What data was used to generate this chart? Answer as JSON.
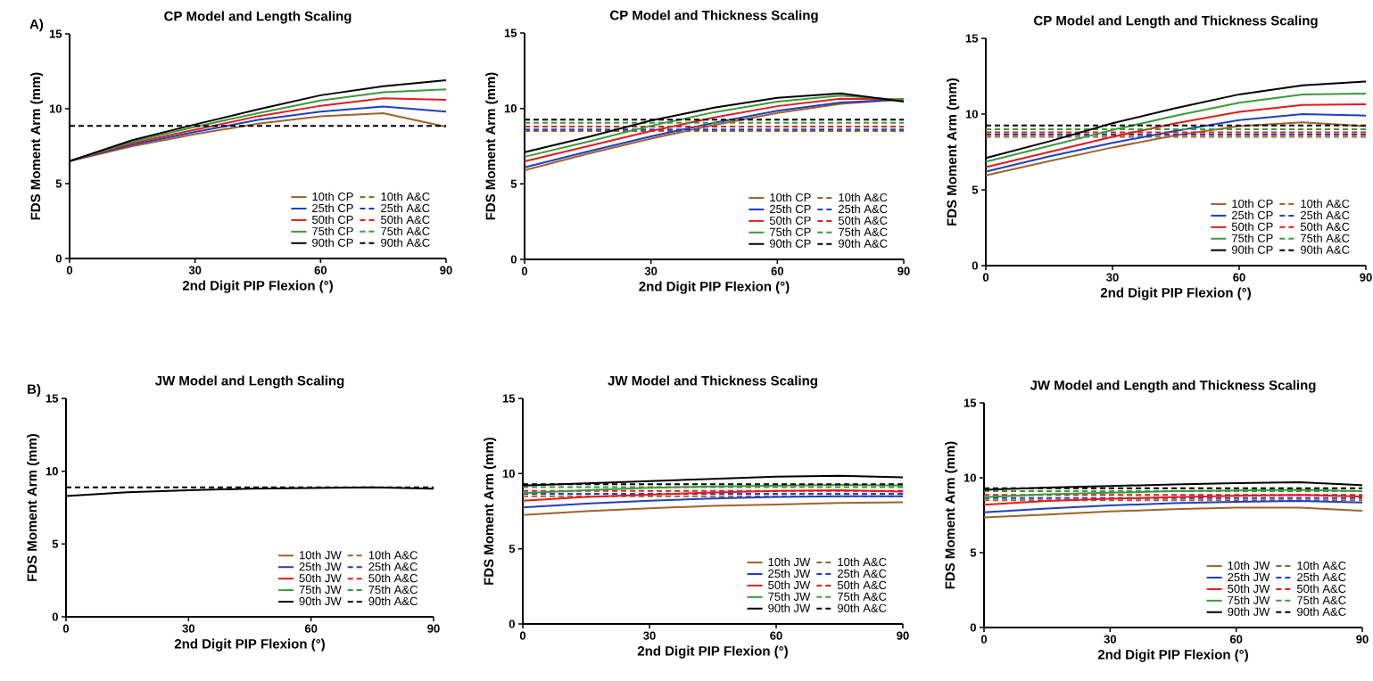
{
  "chart_data": [
    {
      "type": "line",
      "title": "CP Model and Length Scaling",
      "xlabel": "2nd Digit PIP Flexion (°)",
      "ylabel": "FDS Moment Arm (mm)",
      "annotations": [
        "A)"
      ],
      "x": [
        0,
        15,
        30,
        45,
        60,
        75,
        90
      ],
      "xlim": [
        0,
        90
      ],
      "ylim": [
        0,
        15
      ],
      "xticks": [
        0,
        30,
        60,
        90
      ],
      "yticks": [
        0,
        5,
        10,
        15
      ],
      "legend": "bottom right",
      "line_style": "solid",
      "series": [
        {
          "name": "10th CP",
          "color": "#a0622d",
          "values": [
            6.5,
            7.5,
            8.3,
            9.0,
            9.5,
            9.7,
            8.8
          ]
        },
        {
          "name": "10th A&C",
          "color": "#a0622d",
          "line_style": "dashed",
          "values": [
            null,
            null,
            null,
            null,
            null,
            null,
            null
          ]
        },
        {
          "name": "25th CP",
          "color": "#1f3fbf",
          "values": [
            6.5,
            7.6,
            8.45,
            9.25,
            9.8,
            10.15,
            9.8
          ]
        },
        {
          "name": "25th A&C",
          "color": "#1f3fbf",
          "line_style": "dashed",
          "values": [
            null,
            null,
            null,
            null,
            null,
            null,
            null
          ]
        },
        {
          "name": "50th CP",
          "color": "#e8191c",
          "values": [
            6.5,
            7.7,
            8.6,
            9.5,
            10.2,
            10.7,
            10.6
          ]
        },
        {
          "name": "50th A&C",
          "color": "#e8191c",
          "line_style": "dashed",
          "values": [
            null,
            null,
            null,
            null,
            null,
            null,
            null
          ]
        },
        {
          "name": "75th CP",
          "color": "#3a9a3a",
          "values": [
            6.5,
            7.8,
            8.8,
            9.7,
            10.55,
            11.1,
            11.3
          ]
        },
        {
          "name": "75th A&C",
          "color": "#3a9a3a",
          "line_style": "dashed",
          "values": [
            null,
            null,
            null,
            null,
            null,
            null,
            null
          ]
        },
        {
          "name": "90th CP",
          "color": "#000000",
          "values": [
            6.5,
            7.9,
            8.95,
            9.95,
            10.9,
            11.5,
            11.9
          ]
        },
        {
          "name": "90th A&C",
          "color": "#000000",
          "line_style": "dashed",
          "values": [
            8.85,
            8.85,
            8.85,
            8.85,
            8.85,
            8.85,
            8.85
          ]
        }
      ]
    },
    {
      "type": "line",
      "title": "CP Model and Thickness Scaling",
      "xlabel": "2nd Digit PIP Flexion (°)",
      "ylabel": "FDS Moment Arm (mm)",
      "x": [
        0,
        15,
        30,
        45,
        60,
        75,
        90
      ],
      "xlim": [
        0,
        90
      ],
      "ylim": [
        0,
        15
      ],
      "xticks": [
        0,
        30,
        60,
        90
      ],
      "yticks": [
        0,
        5,
        10,
        15
      ],
      "legend": "bottom right",
      "line_style": "solid",
      "series": [
        {
          "name": "10th CP",
          "color": "#a0622d",
          "values": [
            5.9,
            7.0,
            8.0,
            8.9,
            9.7,
            10.3,
            10.6
          ]
        },
        {
          "name": "10th A&C",
          "color": "#a0622d",
          "line_style": "dashed",
          "values": [
            8.5,
            8.5,
            8.5,
            8.5,
            8.5,
            8.5,
            8.5
          ]
        },
        {
          "name": "25th CP",
          "color": "#1f3fbf",
          "values": [
            6.1,
            7.15,
            8.15,
            9.05,
            9.85,
            10.4,
            10.6
          ]
        },
        {
          "name": "25th A&C",
          "color": "#1f3fbf",
          "line_style": "dashed",
          "values": [
            8.6,
            8.6,
            8.6,
            8.6,
            8.6,
            8.6,
            8.6
          ]
        },
        {
          "name": "50th CP",
          "color": "#e8191c",
          "values": [
            6.5,
            7.5,
            8.5,
            9.4,
            10.15,
            10.65,
            10.6
          ]
        },
        {
          "name": "50th A&C",
          "color": "#e8191c",
          "line_style": "dashed",
          "values": [
            8.8,
            8.8,
            8.8,
            8.8,
            8.8,
            8.8,
            8.8
          ]
        },
        {
          "name": "75th CP",
          "color": "#3a9a3a",
          "values": [
            6.8,
            7.8,
            8.85,
            9.75,
            10.45,
            10.85,
            10.55
          ]
        },
        {
          "name": "75th A&C",
          "color": "#3a9a3a",
          "line_style": "dashed",
          "values": [
            9.05,
            9.05,
            9.05,
            9.05,
            9.05,
            9.05,
            9.05
          ]
        },
        {
          "name": "90th CP",
          "color": "#000000",
          "values": [
            7.1,
            8.1,
            9.2,
            10.05,
            10.7,
            11.0,
            10.45
          ]
        },
        {
          "name": "90th A&C",
          "color": "#000000",
          "line_style": "dashed",
          "values": [
            9.25,
            9.25,
            9.25,
            9.25,
            9.25,
            9.25,
            9.25
          ]
        }
      ]
    },
    {
      "type": "line",
      "title": "CP Model and Length and Thickness Scaling",
      "xlabel": "2nd Digit PIP Flexion (°)",
      "ylabel": "FDS Moment Arm (mm)",
      "x": [
        0,
        15,
        30,
        45,
        60,
        75,
        90
      ],
      "xlim": [
        0,
        90
      ],
      "ylim": [
        0,
        15
      ],
      "xticks": [
        0,
        30,
        60,
        90
      ],
      "yticks": [
        0,
        5,
        10,
        15
      ],
      "legend": "bottom right",
      "line_style": "solid",
      "series": [
        {
          "name": "10th CP",
          "color": "#a0622d",
          "values": [
            5.95,
            6.9,
            7.8,
            8.6,
            9.2,
            9.45,
            9.2
          ]
        },
        {
          "name": "10th A&C",
          "color": "#a0622d",
          "line_style": "dashed",
          "values": [
            8.5,
            8.5,
            8.5,
            8.5,
            8.5,
            8.5,
            8.5
          ]
        },
        {
          "name": "25th CP",
          "color": "#1f3fbf",
          "values": [
            6.2,
            7.2,
            8.1,
            8.9,
            9.6,
            10.0,
            9.9
          ]
        },
        {
          "name": "25th A&C",
          "color": "#1f3fbf",
          "line_style": "dashed",
          "values": [
            8.65,
            8.65,
            8.65,
            8.65,
            8.65,
            8.65,
            8.65
          ]
        },
        {
          "name": "50th CP",
          "color": "#e8191c",
          "values": [
            6.5,
            7.5,
            8.5,
            9.4,
            10.15,
            10.6,
            10.65
          ]
        },
        {
          "name": "50th A&C",
          "color": "#e8191c",
          "line_style": "dashed",
          "values": [
            8.8,
            8.8,
            8.8,
            8.8,
            8.8,
            8.8,
            8.8
          ]
        },
        {
          "name": "75th CP",
          "color": "#3a9a3a",
          "values": [
            6.85,
            7.9,
            8.95,
            9.9,
            10.75,
            11.3,
            11.35
          ]
        },
        {
          "name": "75th A&C",
          "color": "#3a9a3a",
          "line_style": "dashed",
          "values": [
            9.0,
            9.0,
            9.0,
            9.0,
            9.0,
            9.0,
            9.0
          ]
        },
        {
          "name": "90th CP",
          "color": "#000000",
          "values": [
            7.1,
            8.2,
            9.4,
            10.4,
            11.3,
            11.9,
            12.15
          ]
        },
        {
          "name": "90th A&C",
          "color": "#000000",
          "line_style": "dashed",
          "values": [
            9.25,
            9.25,
            9.25,
            9.25,
            9.25,
            9.25,
            9.25
          ]
        }
      ]
    },
    {
      "type": "line",
      "title": "JW Model and Length Scaling",
      "xlabel": "2nd Digit PIP Flexion (°)",
      "ylabel": "FDS Moment Arm (mm)",
      "annotations": [
        "B)"
      ],
      "x": [
        0,
        15,
        30,
        45,
        60,
        75,
        90
      ],
      "xlim": [
        0,
        90
      ],
      "ylim": [
        0,
        15
      ],
      "xticks": [
        0,
        30,
        60,
        90
      ],
      "yticks": [
        0,
        5,
        10,
        15
      ],
      "legend": "bottom right",
      "line_style": "solid",
      "series": [
        {
          "name": "10th JW",
          "color": "#a0622d",
          "values": [
            null,
            null,
            null,
            null,
            null,
            null,
            null
          ]
        },
        {
          "name": "10th A&C",
          "color": "#a0622d",
          "line_style": "dashed",
          "values": [
            null,
            null,
            null,
            null,
            null,
            null,
            null
          ]
        },
        {
          "name": "25th JW",
          "color": "#1f3fbf",
          "values": [
            null,
            null,
            null,
            null,
            null,
            null,
            null
          ]
        },
        {
          "name": "25th A&C",
          "color": "#1f3fbf",
          "line_style": "dashed",
          "values": [
            null,
            null,
            null,
            null,
            null,
            null,
            null
          ]
        },
        {
          "name": "50th JW",
          "color": "#e8191c",
          "values": [
            null,
            null,
            null,
            null,
            null,
            null,
            null
          ]
        },
        {
          "name": "50th A&C",
          "color": "#e8191c",
          "line_style": "dashed",
          "values": [
            null,
            null,
            null,
            null,
            null,
            null,
            null
          ]
        },
        {
          "name": "75th JW",
          "color": "#3a9a3a",
          "values": [
            null,
            null,
            null,
            null,
            null,
            null,
            null
          ]
        },
        {
          "name": "75th A&C",
          "color": "#3a9a3a",
          "line_style": "dashed",
          "values": [
            null,
            null,
            null,
            null,
            null,
            null,
            null
          ]
        },
        {
          "name": "90th JW",
          "color": "#000000",
          "values": [
            8.3,
            8.55,
            8.7,
            8.8,
            8.85,
            8.9,
            8.8
          ]
        },
        {
          "name": "90th A&C",
          "color": "#000000",
          "line_style": "dashed",
          "values": [
            8.9,
            8.9,
            8.9,
            8.9,
            8.9,
            8.9,
            8.9
          ]
        }
      ]
    },
    {
      "type": "line",
      "title": "JW Model and Thickness Scaling",
      "xlabel": "2nd Digit PIP Flexion (°)",
      "ylabel": "FDS Moment Arm (mm)",
      "x": [
        0,
        15,
        30,
        45,
        60,
        75,
        90
      ],
      "xlim": [
        0,
        90
      ],
      "ylim": [
        0,
        15
      ],
      "xticks": [
        0,
        30,
        60,
        90
      ],
      "yticks": [
        0,
        5,
        10,
        15
      ],
      "legend": "bottom right",
      "line_style": "solid",
      "series": [
        {
          "name": "10th JW",
          "color": "#a0622d",
          "values": [
            7.25,
            7.5,
            7.7,
            7.85,
            7.95,
            8.05,
            8.1
          ]
        },
        {
          "name": "10th A&C",
          "color": "#a0622d",
          "line_style": "dashed",
          "values": [
            8.5,
            8.5,
            8.5,
            8.5,
            8.5,
            8.5,
            8.5
          ]
        },
        {
          "name": "25th JW",
          "color": "#1f3fbf",
          "values": [
            7.75,
            8.0,
            8.2,
            8.35,
            8.45,
            8.5,
            8.5
          ]
        },
        {
          "name": "25th A&C",
          "color": "#1f3fbf",
          "line_style": "dashed",
          "values": [
            8.65,
            8.65,
            8.65,
            8.65,
            8.65,
            8.65,
            8.65
          ]
        },
        {
          "name": "50th JW",
          "color": "#e8191c",
          "values": [
            8.2,
            8.45,
            8.6,
            8.75,
            8.85,
            8.9,
            8.8
          ]
        },
        {
          "name": "50th A&C",
          "color": "#e8191c",
          "line_style": "dashed",
          "values": [
            8.85,
            8.85,
            8.85,
            8.85,
            8.85,
            8.85,
            8.85
          ]
        },
        {
          "name": "75th JW",
          "color": "#3a9a3a",
          "values": [
            8.7,
            8.9,
            9.05,
            9.15,
            9.2,
            9.25,
            9.2
          ]
        },
        {
          "name": "75th A&C",
          "color": "#3a9a3a",
          "line_style": "dashed",
          "values": [
            9.1,
            9.1,
            9.1,
            9.1,
            9.1,
            9.1,
            9.1
          ]
        },
        {
          "name": "90th JW",
          "color": "#000000",
          "values": [
            9.2,
            9.35,
            9.5,
            9.65,
            9.8,
            9.85,
            9.75
          ]
        },
        {
          "name": "90th A&C",
          "color": "#000000",
          "line_style": "dashed",
          "values": [
            9.3,
            9.3,
            9.3,
            9.3,
            9.3,
            9.3,
            9.3
          ]
        }
      ]
    },
    {
      "type": "line",
      "title": "JW Model and Length and Thickness Scaling",
      "xlabel": "2nd Digit PIP Flexion (°)",
      "ylabel": "FDS Moment Arm (mm)",
      "x": [
        0,
        15,
        30,
        45,
        60,
        75,
        90
      ],
      "xlim": [
        0,
        90
      ],
      "ylim": [
        0,
        15
      ],
      "xticks": [
        0,
        30,
        60,
        90
      ],
      "yticks": [
        0,
        5,
        10,
        15
      ],
      "legend": "bottom right",
      "line_style": "solid",
      "series": [
        {
          "name": "10th JW",
          "color": "#a0622d",
          "values": [
            7.35,
            7.55,
            7.75,
            7.9,
            8.0,
            8.0,
            7.8
          ]
        },
        {
          "name": "10th A&C",
          "color": "#a0622d",
          "line_style": "dashed",
          "values": [
            8.5,
            8.5,
            8.5,
            8.5,
            8.5,
            8.5,
            8.5
          ]
        },
        {
          "name": "25th JW",
          "color": "#1f3fbf",
          "values": [
            7.7,
            7.95,
            8.15,
            8.3,
            8.4,
            8.45,
            8.35
          ]
        },
        {
          "name": "25th A&C",
          "color": "#1f3fbf",
          "line_style": "dashed",
          "values": [
            8.65,
            8.65,
            8.65,
            8.65,
            8.65,
            8.65,
            8.65
          ]
        },
        {
          "name": "50th JW",
          "color": "#e8191c",
          "values": [
            8.2,
            8.45,
            8.6,
            8.7,
            8.8,
            8.85,
            8.75
          ]
        },
        {
          "name": "50th A&C",
          "color": "#e8191c",
          "line_style": "dashed",
          "values": [
            8.85,
            8.85,
            8.85,
            8.85,
            8.85,
            8.85,
            8.85
          ]
        },
        {
          "name": "75th JW",
          "color": "#3a9a3a",
          "values": [
            8.7,
            8.9,
            9.0,
            9.1,
            9.15,
            9.2,
            9.1
          ]
        },
        {
          "name": "75th A&C",
          "color": "#3a9a3a",
          "line_style": "dashed",
          "values": [
            9.1,
            9.1,
            9.1,
            9.1,
            9.1,
            9.1,
            9.1
          ]
        },
        {
          "name": "90th JW",
          "color": "#000000",
          "values": [
            9.2,
            9.35,
            9.45,
            9.55,
            9.65,
            9.7,
            9.5
          ]
        },
        {
          "name": "90th A&C",
          "color": "#000000",
          "line_style": "dashed",
          "values": [
            9.3,
            9.3,
            9.3,
            9.3,
            9.3,
            9.3,
            9.3
          ]
        }
      ]
    }
  ]
}
